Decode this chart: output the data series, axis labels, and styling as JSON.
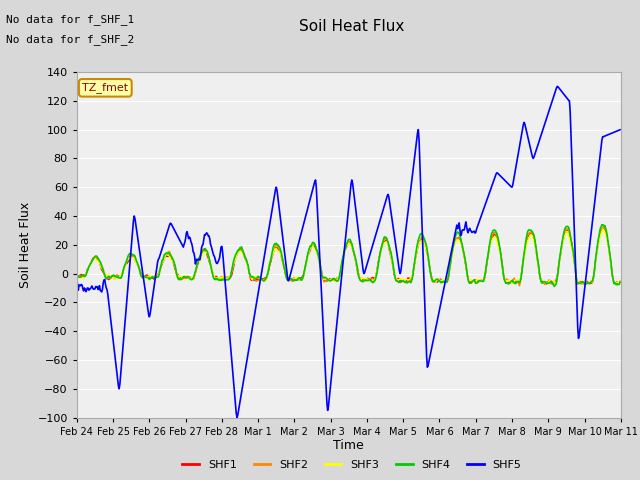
{
  "title": "Soil Heat Flux",
  "xlabel": "Time",
  "ylabel": "Soil Heat Flux",
  "annotations": [
    "No data for f_SHF_1",
    "No data for f_SHF_2"
  ],
  "tz_label": "TZ_fmet",
  "ylim": [
    -100,
    140
  ],
  "yticks": [
    -100,
    -80,
    -60,
    -40,
    -20,
    0,
    20,
    40,
    60,
    80,
    100,
    120,
    140
  ],
  "bg_color": "#d8d8d8",
  "plot_bg": "#efefef",
  "grid_color": "#ffffff",
  "line_colors": {
    "SHF1": "#ff0000",
    "SHF2": "#ff8800",
    "SHF3": "#ffff00",
    "SHF4": "#00cc00",
    "SHF5": "#0000ff"
  },
  "legend_labels": [
    "SHF1",
    "SHF2",
    "SHF3",
    "SHF4",
    "SHF5"
  ],
  "date_labels": [
    "Feb 24",
    "Feb 25",
    "Feb 26",
    "Feb 27",
    "Feb 28",
    "Mar 1",
    "Mar 2",
    "Mar 3",
    "Mar 4",
    "Mar 5",
    "Mar 6",
    "Mar 7",
    "Mar 8",
    "Mar 9",
    "Mar 10",
    "Mar 11"
  ]
}
